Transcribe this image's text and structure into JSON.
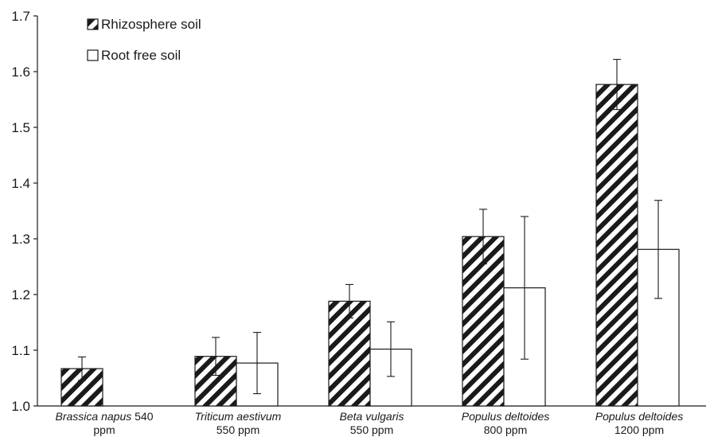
{
  "chart_data": {
    "type": "bar",
    "title": "",
    "xlabel": "",
    "ylabel": "",
    "ylim": [
      1.0,
      1.7
    ],
    "yticks": [
      "1.0",
      "1.1",
      "1.2",
      "1.3",
      "1.4",
      "1.5",
      "1.6",
      "1.7"
    ],
    "grid": false,
    "legend_position": "top-left",
    "categories": [
      {
        "species": "Brassica napus",
        "conc": "540",
        "unit": "ppm"
      },
      {
        "species": "Triticum aestivum",
        "line2": "550 ppm"
      },
      {
        "species": "Beta vulgaris",
        "line2": "550 ppm"
      },
      {
        "species": "Populus deltoides",
        "line2": "800 ppm"
      },
      {
        "species": "Populus deltoides",
        "line2": "1200 ppm"
      }
    ],
    "series": [
      {
        "name": "Rhizosphere soil",
        "pattern": "hatched",
        "values": [
          1.067,
          1.089,
          1.188,
          1.304,
          1.577
        ],
        "errors": [
          0.021,
          0.034,
          0.03,
          0.049,
          0.045
        ]
      },
      {
        "name": "Root free soil",
        "pattern": "open",
        "values": [
          null,
          1.077,
          1.102,
          1.212,
          1.281
        ],
        "errors": [
          null,
          0.055,
          0.049,
          0.128,
          0.088
        ]
      }
    ],
    "colors": {
      "stroke": "#1a1a1a",
      "hatch": "#1a1a1a",
      "fill": "#ffffff"
    }
  }
}
